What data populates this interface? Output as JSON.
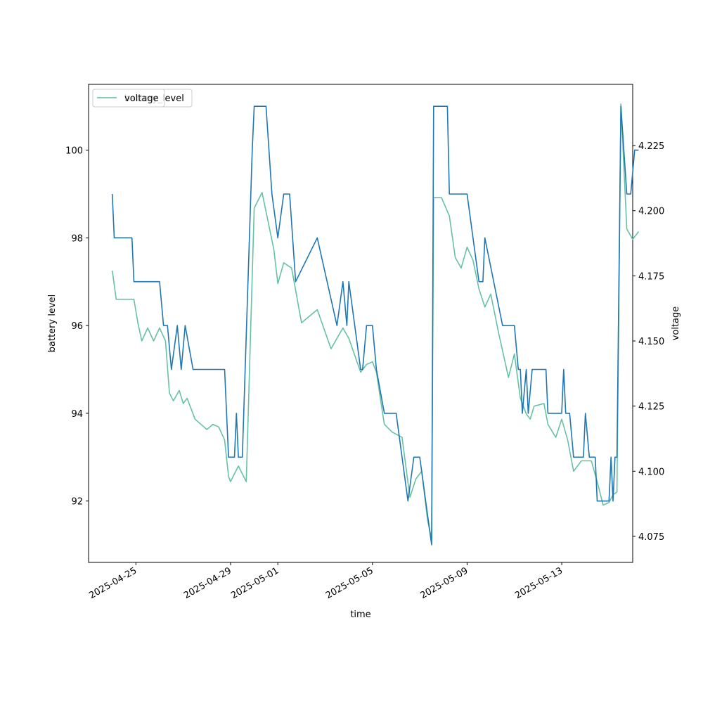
{
  "chart_data": {
    "type": "line",
    "xlabel": "time",
    "ylabel_left": "battery level",
    "ylabel_right": "voltage",
    "xlim": [
      "2025-04-23",
      "2025-05-16"
    ],
    "ylim_left": [
      90.6,
      101.5
    ],
    "ylim_right": [
      4.065,
      4.2485
    ],
    "x_ticks": [
      "2025-04-25",
      "2025-04-29",
      "2025-05-01",
      "2025-05-05",
      "2025-05-09",
      "2025-05-13"
    ],
    "y_ticks_left": [
      "92",
      "94",
      "96",
      "98",
      "100"
    ],
    "y_ticks_right": [
      "4.075",
      "4.100",
      "4.125",
      "4.150",
      "4.175",
      "4.200",
      "4.225"
    ],
    "legend": {
      "entries": [
        "battery_level",
        "voltage"
      ],
      "placement": "upper-left"
    },
    "grid": false,
    "colors": {
      "battery_level": "#1f77b4",
      "voltage": "#66c2a5"
    },
    "series": [
      {
        "name": "battery_level",
        "axis": "left",
        "points": [
          [
            "2025-04-24 00:00",
            99
          ],
          [
            "2025-04-24 02:00",
            98
          ],
          [
            "2025-04-24 20:00",
            98
          ],
          [
            "2025-04-24 22:00",
            97
          ],
          [
            "2025-04-26 00:00",
            97
          ],
          [
            "2025-04-26 04:00",
            96
          ],
          [
            "2025-04-26 08:00",
            96
          ],
          [
            "2025-04-26 12:00",
            95
          ],
          [
            "2025-04-26 18:00",
            96
          ],
          [
            "2025-04-26 22:00",
            95
          ],
          [
            "2025-04-27 02:00",
            96
          ],
          [
            "2025-04-27 10:00",
            95
          ],
          [
            "2025-04-28 18:00",
            95
          ],
          [
            "2025-04-28 22:00",
            93
          ],
          [
            "2025-04-29 04:00",
            93
          ],
          [
            "2025-04-29 06:00",
            94
          ],
          [
            "2025-04-29 08:00",
            93
          ],
          [
            "2025-04-29 12:00",
            93
          ],
          [
            "2025-04-29 22:00",
            100
          ],
          [
            "2025-04-30 00:00",
            101
          ],
          [
            "2025-04-30 12:00",
            101
          ],
          [
            "2025-04-30 18:00",
            99
          ],
          [
            "2025-05-01 00:00",
            98
          ],
          [
            "2025-05-01 06:00",
            99
          ],
          [
            "2025-05-01 12:00",
            99
          ],
          [
            "2025-05-01 18:00",
            97
          ],
          [
            "2025-05-02 16:00",
            98
          ],
          [
            "2025-05-03 12:00",
            96
          ],
          [
            "2025-05-03 18:00",
            97
          ],
          [
            "2025-05-03 22:00",
            96
          ],
          [
            "2025-05-04 00:00",
            97
          ],
          [
            "2025-05-04 12:00",
            95
          ],
          [
            "2025-05-04 14:00",
            95
          ],
          [
            "2025-05-04 18:00",
            96
          ],
          [
            "2025-05-05 00:00",
            96
          ],
          [
            "2025-05-05 04:00",
            95
          ],
          [
            "2025-05-05 12:00",
            94
          ],
          [
            "2025-05-06 00:00",
            94
          ],
          [
            "2025-05-06 12:00",
            92
          ],
          [
            "2025-05-06 18:00",
            93
          ],
          [
            "2025-05-07 00:00",
            93
          ],
          [
            "2025-05-07 06:00",
            92
          ],
          [
            "2025-05-07 12:00",
            91
          ],
          [
            "2025-05-07 14:00",
            101
          ],
          [
            "2025-05-08 04:00",
            101
          ],
          [
            "2025-05-08 06:00",
            99
          ],
          [
            "2025-05-09 00:00",
            99
          ],
          [
            "2025-05-09 12:00",
            97
          ],
          [
            "2025-05-09 16:00",
            97
          ],
          [
            "2025-05-09 18:00",
            98
          ],
          [
            "2025-05-10 12:00",
            96
          ],
          [
            "2025-05-11 00:00",
            96
          ],
          [
            "2025-05-11 04:00",
            95
          ],
          [
            "2025-05-11 06:00",
            95
          ],
          [
            "2025-05-11 08:00",
            94
          ],
          [
            "2025-05-11 12:00",
            95
          ],
          [
            "2025-05-11 14:00",
            94
          ],
          [
            "2025-05-11 18:00",
            95
          ],
          [
            "2025-05-12 08:00",
            95
          ],
          [
            "2025-05-12 10:00",
            94
          ],
          [
            "2025-05-13 00:00",
            94
          ],
          [
            "2025-05-13 02:00",
            95
          ],
          [
            "2025-05-13 04:00",
            94
          ],
          [
            "2025-05-13 08:00",
            94
          ],
          [
            "2025-05-13 12:00",
            93
          ],
          [
            "2025-05-13 22:00",
            93
          ],
          [
            "2025-05-14 00:00",
            94
          ],
          [
            "2025-05-14 04:00",
            93
          ],
          [
            "2025-05-14 10:00",
            93
          ],
          [
            "2025-05-14 12:00",
            92
          ],
          [
            "2025-05-15 00:00",
            92
          ],
          [
            "2025-05-15 02:00",
            93
          ],
          [
            "2025-05-15 04:00",
            92
          ],
          [
            "2025-05-15 06:00",
            93
          ],
          [
            "2025-05-15 08:00",
            93
          ],
          [
            "2025-05-15 12:00",
            101
          ],
          [
            "2025-05-15 18:00",
            99
          ],
          [
            "2025-05-15 22:00",
            99
          ],
          [
            "2025-05-16 02:00",
            100
          ],
          [
            "2025-05-16 06:00",
            100
          ]
        ]
      },
      {
        "name": "voltage",
        "axis": "right",
        "points": [
          [
            "2025-04-24 00:00",
            4.177
          ],
          [
            "2025-04-24 04:00",
            4.166
          ],
          [
            "2025-04-24 18:00",
            4.166
          ],
          [
            "2025-04-24 22:00",
            4.166
          ],
          [
            "2025-04-25 02:00",
            4.157
          ],
          [
            "2025-04-25 06:00",
            4.15
          ],
          [
            "2025-04-25 12:00",
            4.155
          ],
          [
            "2025-04-25 18:00",
            4.15
          ],
          [
            "2025-04-26 00:00",
            4.155
          ],
          [
            "2025-04-26 06:00",
            4.15
          ],
          [
            "2025-04-26 10:00",
            4.13
          ],
          [
            "2025-04-26 14:00",
            4.127
          ],
          [
            "2025-04-26 20:00",
            4.131
          ],
          [
            "2025-04-27 00:00",
            4.126
          ],
          [
            "2025-04-27 04:00",
            4.128
          ],
          [
            "2025-04-27 12:00",
            4.12
          ],
          [
            "2025-04-28 00:00",
            4.116
          ],
          [
            "2025-04-28 06:00",
            4.118
          ],
          [
            "2025-04-28 12:00",
            4.117
          ],
          [
            "2025-04-28 18:00",
            4.112
          ],
          [
            "2025-04-28 22:00",
            4.098
          ],
          [
            "2025-04-29 00:00",
            4.096
          ],
          [
            "2025-04-29 08:00",
            4.102
          ],
          [
            "2025-04-29 16:00",
            4.096
          ],
          [
            "2025-04-30 00:00",
            4.201
          ],
          [
            "2025-04-30 08:00",
            4.207
          ],
          [
            "2025-04-30 20:00",
            4.185
          ],
          [
            "2025-05-01 00:00",
            4.172
          ],
          [
            "2025-05-01 06:00",
            4.18
          ],
          [
            "2025-05-01 14:00",
            4.178
          ],
          [
            "2025-05-02 00:00",
            4.157
          ],
          [
            "2025-05-02 16:00",
            4.162
          ],
          [
            "2025-05-03 06:00",
            4.147
          ],
          [
            "2025-05-03 12:00",
            4.151
          ],
          [
            "2025-05-03 18:00",
            4.155
          ],
          [
            "2025-05-04 00:00",
            4.151
          ],
          [
            "2025-05-04 12:00",
            4.138
          ],
          [
            "2025-05-04 18:00",
            4.141
          ],
          [
            "2025-05-05 00:00",
            4.142
          ],
          [
            "2025-05-05 04:00",
            4.138
          ],
          [
            "2025-05-05 12:00",
            4.118
          ],
          [
            "2025-05-05 20:00",
            4.115
          ],
          [
            "2025-05-06 06:00",
            4.113
          ],
          [
            "2025-05-06 14:00",
            4.09
          ],
          [
            "2025-05-06 20:00",
            4.097
          ],
          [
            "2025-05-07 02:00",
            4.1
          ],
          [
            "2025-05-07 08:00",
            4.081
          ],
          [
            "2025-05-07 12:00",
            4.074
          ],
          [
            "2025-05-07 14:00",
            4.205
          ],
          [
            "2025-05-07 22:00",
            4.205
          ],
          [
            "2025-05-08 06:00",
            4.198
          ],
          [
            "2025-05-08 12:00",
            4.182
          ],
          [
            "2025-05-08 18:00",
            4.178
          ],
          [
            "2025-05-09 00:00",
            4.186
          ],
          [
            "2025-05-09 06:00",
            4.181
          ],
          [
            "2025-05-09 12:00",
            4.17
          ],
          [
            "2025-05-09 18:00",
            4.163
          ],
          [
            "2025-05-10 00:00",
            4.168
          ],
          [
            "2025-05-10 08:00",
            4.153
          ],
          [
            "2025-05-10 18:00",
            4.136
          ],
          [
            "2025-05-11 00:00",
            4.145
          ],
          [
            "2025-05-11 06:00",
            4.128
          ],
          [
            "2025-05-11 12:00",
            4.122
          ],
          [
            "2025-05-11 16:00",
            4.12
          ],
          [
            "2025-05-11 20:00",
            4.125
          ],
          [
            "2025-05-12 06:00",
            4.126
          ],
          [
            "2025-05-12 10:00",
            4.118
          ],
          [
            "2025-05-12 18:00",
            4.113
          ],
          [
            "2025-05-13 00:00",
            4.12
          ],
          [
            "2025-05-13 06:00",
            4.112
          ],
          [
            "2025-05-13 12:00",
            4.1
          ],
          [
            "2025-05-13 20:00",
            4.104
          ],
          [
            "2025-05-14 06:00",
            4.104
          ],
          [
            "2025-05-14 12:00",
            4.096
          ],
          [
            "2025-05-14 18:00",
            4.087
          ],
          [
            "2025-05-15 00:00",
            4.088
          ],
          [
            "2025-05-15 04:00",
            4.091
          ],
          [
            "2025-05-15 08:00",
            4.092
          ],
          [
            "2025-05-15 12:00",
            4.241
          ],
          [
            "2025-05-15 18:00",
            4.193
          ],
          [
            "2025-05-16 00:00",
            4.189
          ],
          [
            "2025-05-16 06:00",
            4.192
          ]
        ]
      }
    ]
  }
}
